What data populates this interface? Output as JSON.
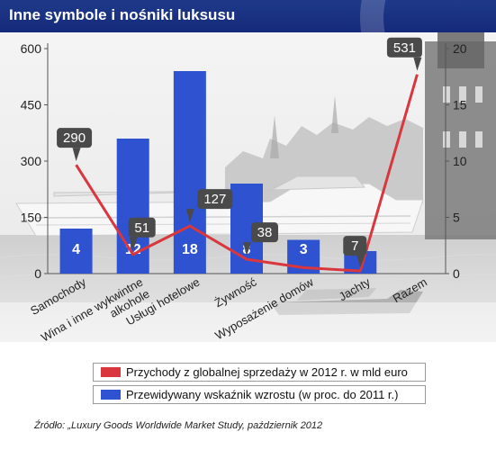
{
  "header": {
    "title": "Inne symbole i nośniki luksusu"
  },
  "chart_data": {
    "type": "bar",
    "categories": [
      "Samochody",
      "Wina i inne wykwintne alkohole",
      "Usługi hotelowe",
      "Żywność",
      "Wyposażenie domów",
      "Jachty",
      "Razem"
    ],
    "category_label_lines": [
      [
        "Samochody"
      ],
      [
        "Wina i inne wykwintne",
        "alkohole"
      ],
      [
        "Usługi hotelowe"
      ],
      [
        "Żywność"
      ],
      [
        "Wyposażenie domów"
      ],
      [
        "Jachty"
      ],
      [
        "Razem"
      ]
    ],
    "series": [
      {
        "name": "Przewidywany wskaźnik wzrostu (w proc. do 2011 r.)",
        "type": "bar",
        "axis": "right",
        "color": "#2f52d0",
        "values": [
          4,
          12,
          18,
          8,
          3,
          2,
          null
        ]
      },
      {
        "name": "Przychody z globalnej sprzedaży w 2012 r. w mld euro",
        "type": "line",
        "axis": "left",
        "color": "#d9363e",
        "values": [
          290,
          51,
          127,
          38,
          16,
          7,
          531
        ],
        "labels": [
          "290",
          "51",
          "127",
          "38",
          null,
          "7",
          "531"
        ]
      }
    ],
    "y_left": {
      "ylim": [
        0,
        600
      ],
      "ticks": [
        "0",
        "150",
        "300",
        "450",
        "600"
      ]
    },
    "y_right": {
      "ylim": [
        0,
        20
      ],
      "ticks": [
        "0",
        "5",
        "10",
        "15",
        "20"
      ]
    },
    "grid": false,
    "legend_position": "bottom"
  },
  "legend": {
    "line_label": "Przychody z globalnej sprzedaży w 2012 r. w mld euro",
    "bar_label": "Przewidywany wskaźnik wzrostu (w proc. do 2011 r.)"
  },
  "source": "Źródło: „Luxury Goods Worldwide Market Study, październik 2012"
}
